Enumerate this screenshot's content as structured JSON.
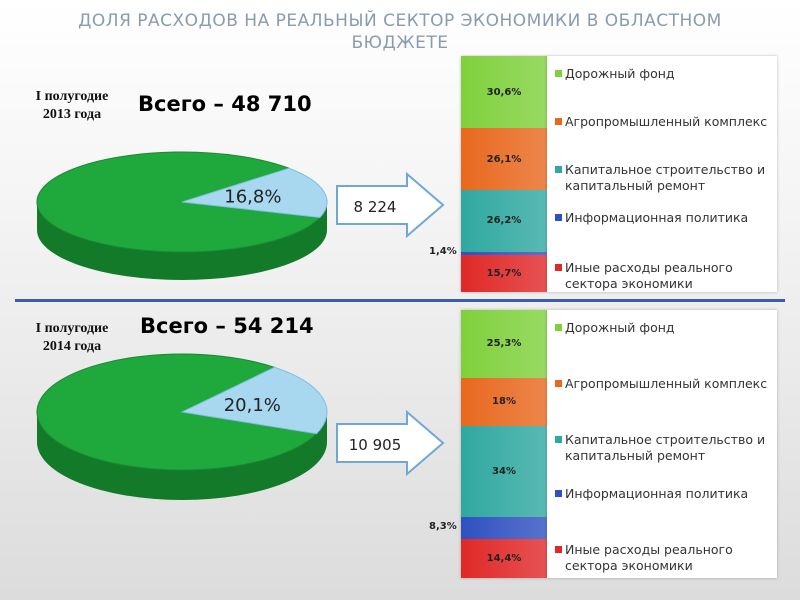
{
  "title": "ДОЛЯ РАСХОДОВ НА РЕАЛЬНЫЙ СЕКТОР ЭКОНОМИКИ В ОБЛАСТНОМ БЮДЖЕТЕ",
  "colors": {
    "pie_main": "#1fa83c",
    "pie_slice": "#a8d8f0",
    "road_fund": "#7fd03c",
    "agro": "#e8681e",
    "capital": "#2fa8a0",
    "info": "#2f50c0",
    "other": "#e02828",
    "divider": "#3a5dae"
  },
  "panels": [
    {
      "period": "I полугодие 2013 года",
      "total_label": "Всего – 48 710",
      "pie_slice_label": "16,8%",
      "arrow_label": "8 224",
      "legend": [
        "Дорожный фонд",
        "Агропромышленный комплекс",
        "Капитальное строительство и капитальный ремонт",
        "Информационная политика",
        "Иные расходы реального сектора экономики"
      ]
    },
    {
      "period": "I полугодие 2014 года",
      "total_label": "Всего – 54 214",
      "pie_slice_label": "20,1%",
      "arrow_label": "10 905",
      "legend": [
        "Дорожный фонд",
        "Агропромышленный комплекс",
        "Капитальное строительство и капитальный ремонт",
        "Информационная политика",
        "Иные расходы реального сектора экономики"
      ]
    }
  ],
  "chart_data": [
    {
      "type": "pie",
      "total": 48710,
      "slices": [
        {
          "name": "",
          "value": 16.8,
          "label": "16,8%"
        },
        {
          "name": "",
          "value": 83.2,
          "label": ""
        }
      ]
    },
    {
      "type": "bar",
      "stacked": true,
      "series": [
        {
          "name": "Дорожный фонд",
          "value": 30.6,
          "label": "30,6%"
        },
        {
          "name": "Агропромышленный комплекс",
          "value": 26.1,
          "label": "26,1%"
        },
        {
          "name": "Капитальное строительство и капитальный ремонт",
          "value": 26.2,
          "label": "26,2%"
        },
        {
          "name": "Информационная политика",
          "value": 1.4,
          "label": "1,4%"
        },
        {
          "name": "Иные расходы реального сектора экономики",
          "value": 15.7,
          "label": "15,7%"
        }
      ]
    },
    {
      "type": "pie",
      "total": 54214,
      "slices": [
        {
          "name": "",
          "value": 20.1,
          "label": "20,1%"
        },
        {
          "name": "",
          "value": 79.9,
          "label": ""
        }
      ]
    },
    {
      "type": "bar",
      "stacked": true,
      "series": [
        {
          "name": "Дорожный фонд",
          "value": 25.3,
          "label": "25,3%"
        },
        {
          "name": "Агропромышленный комплекс",
          "value": 18,
          "label": "18%"
        },
        {
          "name": "Капитальное строительство и капитальный ремонт",
          "value": 34,
          "label": "34%"
        },
        {
          "name": "Информационная политика",
          "value": 8.3,
          "label": "8,3%"
        },
        {
          "name": "Иные расходы реального сектора экономики",
          "value": 14.4,
          "label": "14,4%"
        }
      ]
    }
  ]
}
